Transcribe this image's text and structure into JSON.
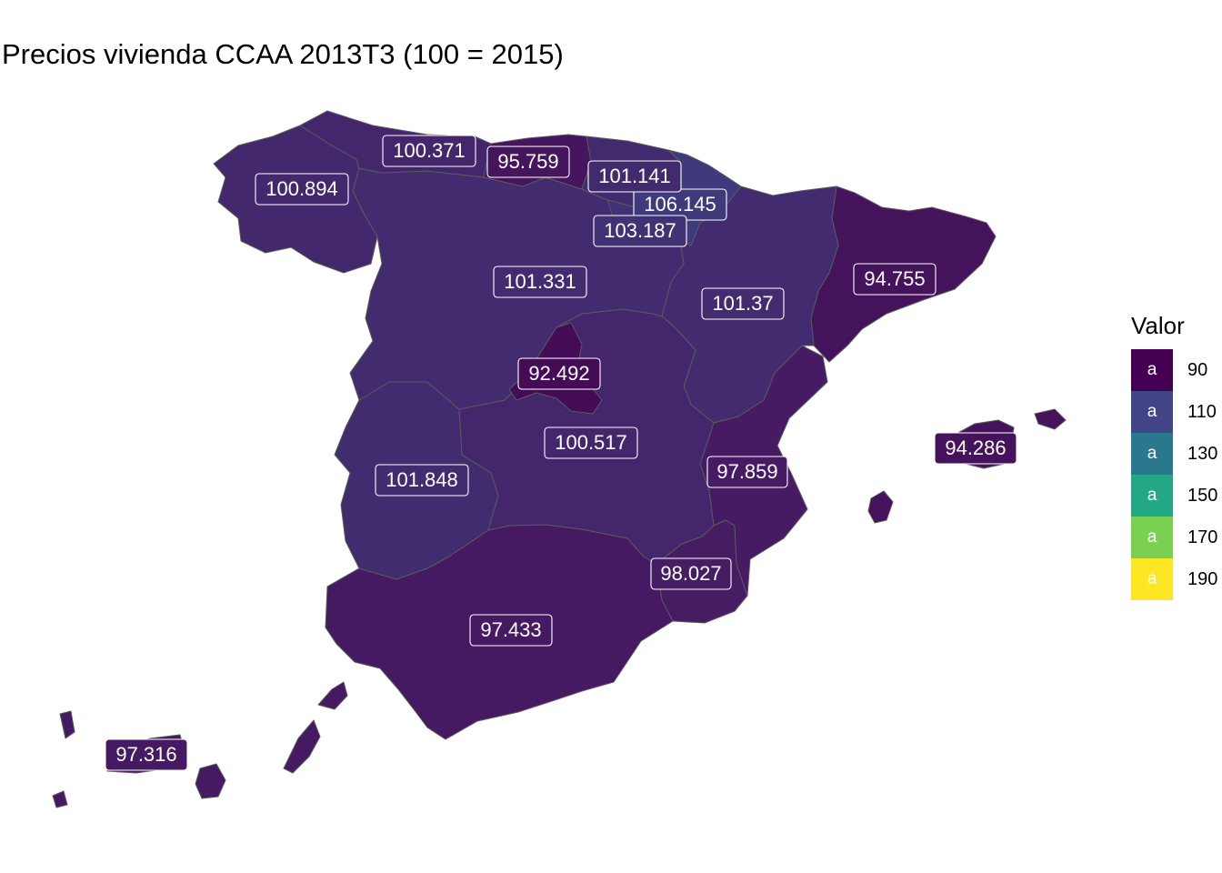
{
  "title": "Precios vivienda CCAA 2013T3 (100 = 2015)",
  "legend": {
    "title": "Valor",
    "key_glyph": "a",
    "items": [
      {
        "value": "90",
        "color": "#440154"
      },
      {
        "value": "110",
        "color": "#414487"
      },
      {
        "value": "130",
        "color": "#2A788E"
      },
      {
        "value": "150",
        "color": "#22A884"
      },
      {
        "value": "170",
        "color": "#7AD151"
      },
      {
        "value": "190",
        "color": "#FDE725"
      }
    ]
  },
  "regions": [
    {
      "id": "andalucia",
      "value": "97.433",
      "color": "#461a62"
    },
    {
      "id": "murcia",
      "value": "98.027",
      "color": "#461c63"
    },
    {
      "id": "valencia",
      "value": "97.859",
      "color": "#461b63"
    },
    {
      "id": "cataluna",
      "value": "94.755",
      "color": "#45135c"
    },
    {
      "id": "aragon",
      "value": "101.37",
      "color": "#422b6f"
    },
    {
      "id": "castilla_mancha",
      "value": "100.517",
      "color": "#43266b"
    },
    {
      "id": "extremadura",
      "value": "101.848",
      "color": "#422c70"
    },
    {
      "id": "castilla_leon",
      "value": "101.331",
      "color": "#422b6f"
    },
    {
      "id": "madrid",
      "value": "92.492",
      "color": "#440c57"
    },
    {
      "id": "galicia",
      "value": "100.894",
      "color": "#43286d"
    },
    {
      "id": "asturias",
      "value": "100.371",
      "color": "#43266b"
    },
    {
      "id": "cantabria",
      "value": "95.759",
      "color": "#45155e"
    },
    {
      "id": "pais_vasco",
      "value": "101.141",
      "color": "#422a6e"
    },
    {
      "id": "navarra",
      "value": "106.145",
      "color": "#3f3a7b"
    },
    {
      "id": "rioja",
      "value": "103.187",
      "color": "#413275"
    },
    {
      "id": "baleares",
      "value": "94.286",
      "color": "#45125b"
    },
    {
      "id": "canarias",
      "value": "97.316",
      "color": "#461a62"
    }
  ]
}
